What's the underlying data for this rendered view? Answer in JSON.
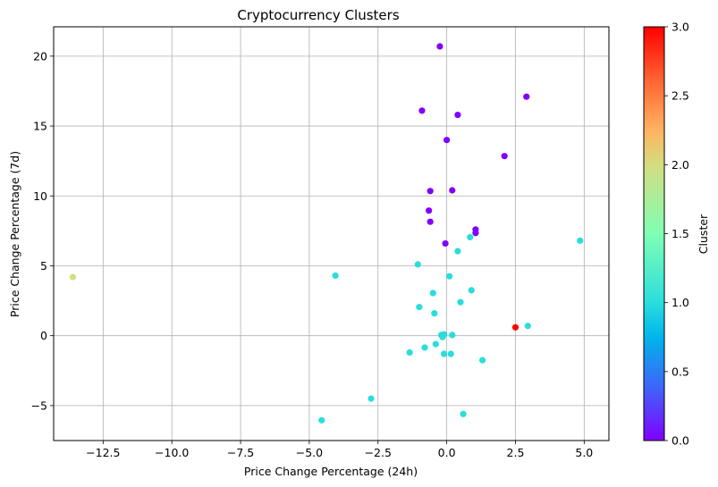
{
  "chart_data": {
    "type": "scatter",
    "title": "Cryptocurrency Clusters",
    "xlabel": "Price Change Percentage (24h)",
    "ylabel": "Price Change Percentage (7d)",
    "xlim": [
      -14.3,
      5.9
    ],
    "ylim": [
      -7.5,
      22.1
    ],
    "xticks": [
      -12.5,
      -10.0,
      -7.5,
      -5.0,
      -2.5,
      0.0,
      2.5,
      5.0
    ],
    "xtick_labels": [
      "−12.5",
      "−10.0",
      "−7.5",
      "−5.0",
      "−2.5",
      "0.0",
      "2.5",
      "5.0"
    ],
    "yticks": [
      -5,
      0,
      5,
      10,
      15,
      20
    ],
    "ytick_labels": [
      "−5",
      "0",
      "5",
      "10",
      "15",
      "20"
    ],
    "grid": true,
    "colormap": "rainbow",
    "colorbar": {
      "label": "Cluster",
      "range": [
        0,
        3
      ],
      "ticks": [
        0.0,
        0.5,
        1.0,
        1.5,
        2.0,
        2.5,
        3.0
      ],
      "tick_labels": [
        "0.0",
        "0.5",
        "1.0",
        "1.5",
        "2.0",
        "2.5",
        "3.0"
      ]
    },
    "points": [
      {
        "x": -0.25,
        "y": 20.7,
        "cluster": 0
      },
      {
        "x": 2.9,
        "y": 17.1,
        "cluster": 0
      },
      {
        "x": -0.9,
        "y": 16.1,
        "cluster": 0
      },
      {
        "x": 0.4,
        "y": 15.8,
        "cluster": 0
      },
      {
        "x": 0.0,
        "y": 14.0,
        "cluster": 0
      },
      {
        "x": 2.1,
        "y": 12.85,
        "cluster": 0
      },
      {
        "x": -0.6,
        "y": 10.35,
        "cluster": 0
      },
      {
        "x": 0.2,
        "y": 10.4,
        "cluster": 0
      },
      {
        "x": -0.65,
        "y": 8.95,
        "cluster": 0
      },
      {
        "x": -0.6,
        "y": 8.15,
        "cluster": 0
      },
      {
        "x": 1.05,
        "y": 7.6,
        "cluster": 0
      },
      {
        "x": 1.05,
        "y": 7.35,
        "cluster": 0
      },
      {
        "x": -0.05,
        "y": 6.6,
        "cluster": 0
      },
      {
        "x": 0.85,
        "y": 7.05,
        "cluster": 1
      },
      {
        "x": 4.85,
        "y": 6.8,
        "cluster": 1
      },
      {
        "x": 0.4,
        "y": 6.05,
        "cluster": 1
      },
      {
        "x": -1.05,
        "y": 5.1,
        "cluster": 1
      },
      {
        "x": -4.05,
        "y": 4.3,
        "cluster": 1
      },
      {
        "x": 0.1,
        "y": 4.25,
        "cluster": 1
      },
      {
        "x": -0.5,
        "y": 3.05,
        "cluster": 1
      },
      {
        "x": 0.9,
        "y": 3.25,
        "cluster": 1
      },
      {
        "x": 0.5,
        "y": 2.4,
        "cluster": 1
      },
      {
        "x": -1.0,
        "y": 2.05,
        "cluster": 1
      },
      {
        "x": -0.45,
        "y": 1.6,
        "cluster": 1
      },
      {
        "x": 2.95,
        "y": 0.7,
        "cluster": 1
      },
      {
        "x": -0.2,
        "y": 0.05,
        "cluster": 1
      },
      {
        "x": -0.1,
        "y": 0.1,
        "cluster": 1
      },
      {
        "x": 0.2,
        "y": 0.05,
        "cluster": 1
      },
      {
        "x": -0.15,
        "y": -0.1,
        "cluster": 1
      },
      {
        "x": -0.4,
        "y": -0.6,
        "cluster": 1
      },
      {
        "x": -0.8,
        "y": -0.85,
        "cluster": 1
      },
      {
        "x": -1.35,
        "y": -1.2,
        "cluster": 1
      },
      {
        "x": -0.1,
        "y": -1.3,
        "cluster": 1
      },
      {
        "x": 0.15,
        "y": -1.3,
        "cluster": 1
      },
      {
        "x": 1.3,
        "y": -1.75,
        "cluster": 1
      },
      {
        "x": -2.75,
        "y": -4.5,
        "cluster": 1
      },
      {
        "x": 0.6,
        "y": -5.6,
        "cluster": 1
      },
      {
        "x": -4.55,
        "y": -6.05,
        "cluster": 1
      },
      {
        "x": -13.6,
        "y": 4.2,
        "cluster": 2
      },
      {
        "x": 2.5,
        "y": 0.6,
        "cluster": 3
      }
    ]
  }
}
